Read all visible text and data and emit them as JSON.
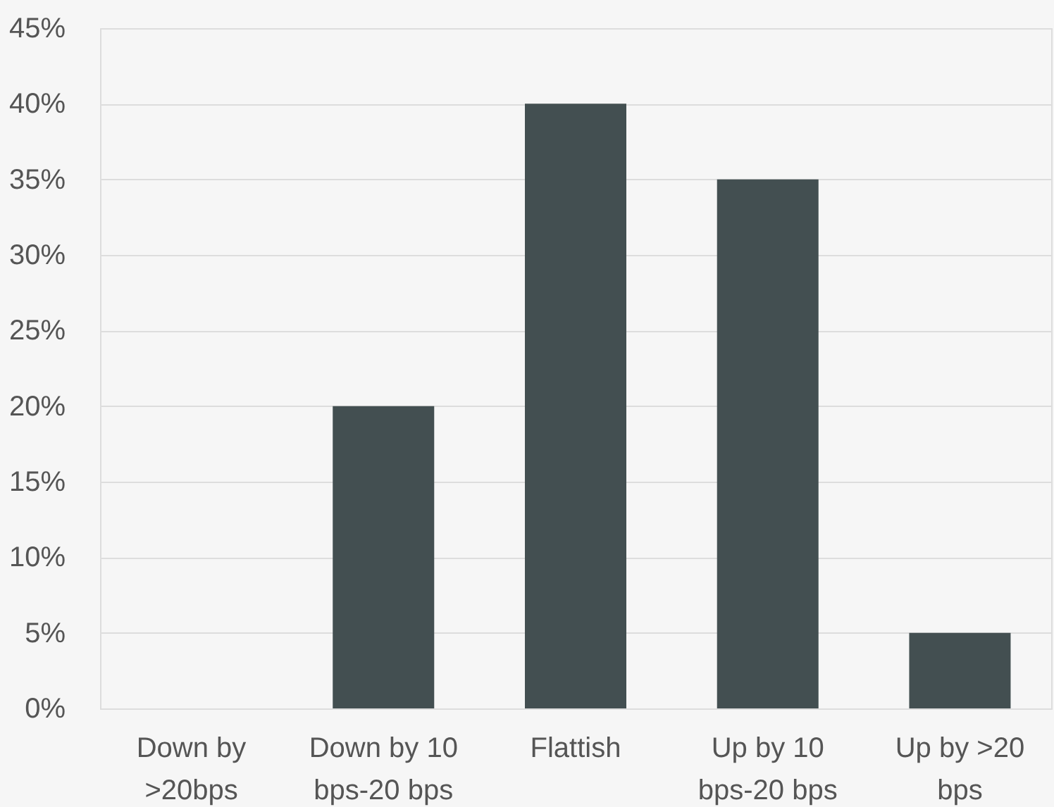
{
  "chart_data": {
    "type": "bar",
    "categories": [
      "Down by\n>20bps",
      "Down by 10\nbps-20 bps",
      "Flattish",
      "Up by 10\nbps-20 bps",
      "Up by >20\nbps"
    ],
    "values": [
      0,
      20,
      40,
      35,
      5
    ],
    "color": "#434f51",
    "ylim": [
      0,
      45
    ],
    "yticks": [
      {
        "value": 0,
        "label": "0%"
      },
      {
        "value": 5,
        "label": "5%"
      },
      {
        "value": 10,
        "label": "10%"
      },
      {
        "value": 15,
        "label": "15%"
      },
      {
        "value": 20,
        "label": "20%"
      },
      {
        "value": 25,
        "label": "25%"
      },
      {
        "value": 30,
        "label": "30%"
      },
      {
        "value": 35,
        "label": "35%"
      },
      {
        "value": 40,
        "label": "40%"
      },
      {
        "value": 45,
        "label": "45%"
      }
    ],
    "grid": "y"
  }
}
